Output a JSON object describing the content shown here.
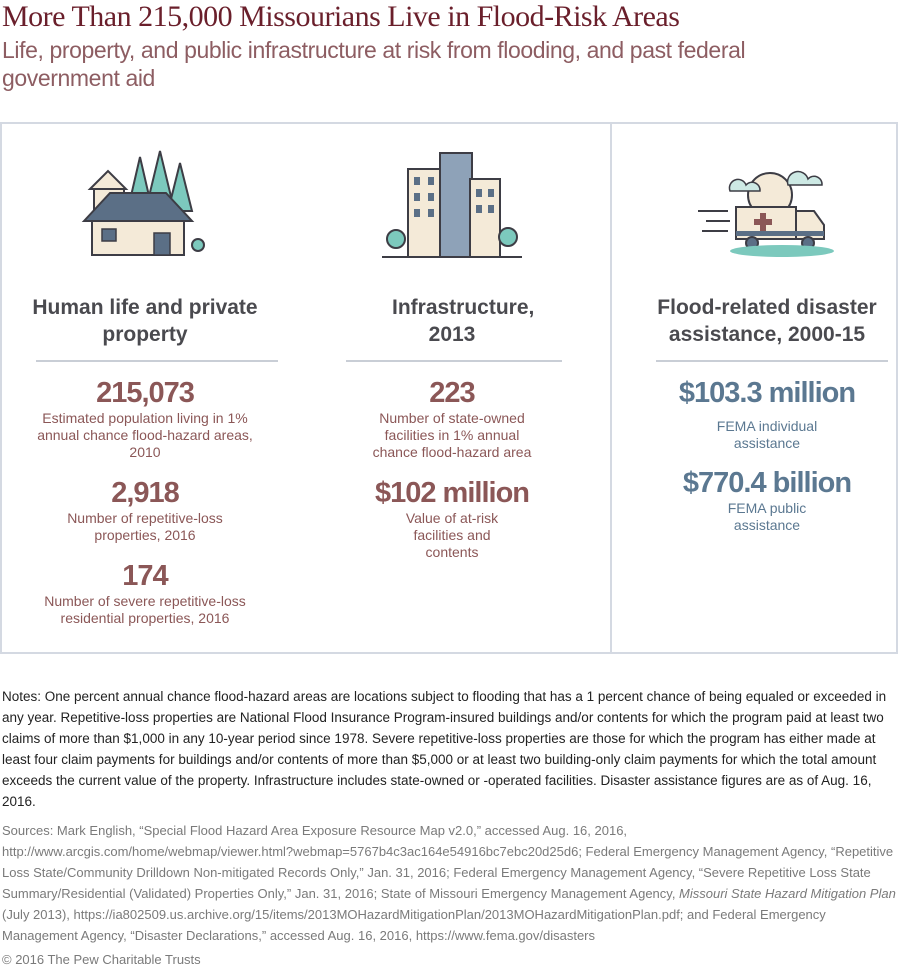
{
  "title": "More Than 215,000 Missourians Live in Flood-Risk Areas",
  "subtitle": "Life, property, and public infrastructure at risk from flooding, and past federal government aid",
  "sections": [
    {
      "icon": "house-icon",
      "heading": "Human life and private property",
      "stats": [
        {
          "value": "215,073",
          "label": "Estimated population living in 1% annual chance flood-hazard areas, 2010"
        },
        {
          "value": "2,918",
          "label": "Number of repetitive-loss properties, 2016"
        },
        {
          "value": "174",
          "label": "Number of severe repetitive-loss residential properties, 2016"
        }
      ]
    },
    {
      "icon": "buildings-icon",
      "heading": "Infrastructure, 2013",
      "stats": [
        {
          "value": "223",
          "label": "Number of state-owned facilities in 1% annual chance flood-hazard area"
        },
        {
          "value": "$102 million",
          "label": "Value of at-risk facilities and contents"
        }
      ]
    },
    {
      "icon": "ambulance-icon",
      "heading": "Flood-related disaster assistance, 2000-15",
      "stats": [
        {
          "value": "$103.3 million",
          "label": "FEMA individual assistance"
        },
        {
          "value": "$770.4 billion",
          "label": "FEMA public assistance"
        }
      ]
    }
  ],
  "notes": "Notes: One percent annual chance flood-hazard areas are locations subject to flooding that has a 1 percent chance of being equaled or exceeded in any year. Repetitive-loss properties are National Flood Insurance Program-insured buildings and/or contents for which the program paid at least two claims of more than $1,000 in any 10-year period since 1978. Severe repetitive-loss properties are those for which the program has either made at least four claim payments for buildings and/or contents of more than $5,000 or at least two building-only claim payments for which the total amount exceeds the current value of the property. Infrastructure includes state-owned or -operated facilities. Disaster assistance figures are as of Aug. 16, 2016.",
  "sources_a": "Sources: Mark English, “Special Flood Hazard Area Exposure Resource Map v2.0,” accessed Aug. 16, 2016, http://www.arcgis.com/home/webmap/viewer.html?webmap=5767b4c3ac164e54916bc7ebc20d25d6; Federal Emergency Management Agency, “Repetitive Loss State/Community Drilldown Non-mitigated Records Only,” Jan. 31, 2016; Federal Emergency Management Agency, “Severe Repetitive Loss State Summary/Residential (Validated) Properties Only,” Jan. 31, 2016; State of Missouri Emergency Management Agency, ",
  "sources_italic": "Missouri State Hazard Mitigation Plan",
  "sources_b": " (July 2013), https://ia802509.us.archive.org/15/items/2013MOHazardMitigationPlan/2013MOHazardMitigationPlan.pdf; and Federal Emergency Management Agency, “Disaster Declarations,” accessed Aug. 16, 2016, https://www.fema.gov/disasters",
  "copyright": "© 2016 The Pew Charitable Trusts",
  "colors": {
    "title": "#6a1f2b",
    "stat": "#8b5757",
    "blue": "#5b7891",
    "teal": "#7cc9bd"
  }
}
